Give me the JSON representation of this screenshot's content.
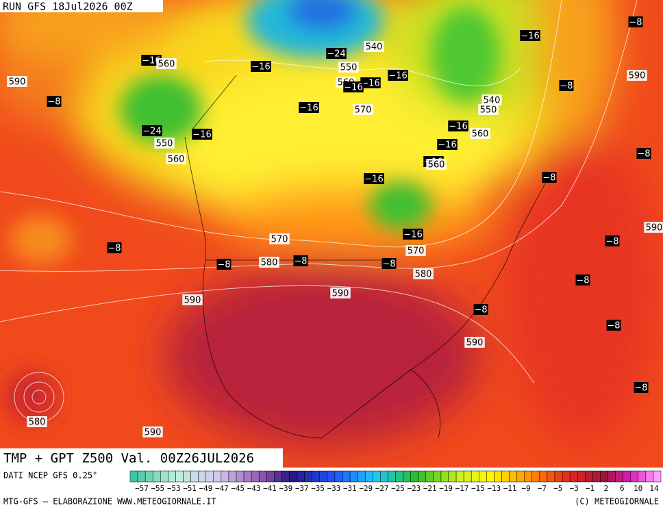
{
  "header": {
    "run": "RUN GFS 18Jul2026 00Z"
  },
  "map": {
    "contour_labels": [
      "540",
      "550",
      "560",
      "−24",
      "−16",
      "−16",
      "570",
      "−16",
      "−16",
      "−16",
      "−16",
      "−8",
      "590",
      "−8",
      "540",
      "550",
      "−16",
      "560",
      "−16",
      "−16",
      "560",
      "−8",
      "−16",
      "−8",
      "590",
      "−16",
      "570",
      "−8",
      "580",
      "−8",
      "−8",
      "−8",
      "590",
      "−8",
      "−8",
      "590",
      "580",
      "−8",
      "−8",
      "570",
      "590",
      "−8",
      "560",
      "550",
      "−24",
      "−16",
      "−16",
      "560",
      "590",
      "−8",
      "580",
      "590"
    ]
  },
  "footer": {
    "title": "TMP + GPT Z500 Val. 00Z26JUL2026",
    "source": "DATI NCEP GFS 0.25°",
    "scale_labels": [
      "−57",
      "−55",
      "−53",
      "−51",
      "−49",
      "−47",
      "−45",
      "−43",
      "−41",
      "−39",
      "−37",
      "−35",
      "−33",
      "−31",
      "−29",
      "−27",
      "−25",
      "−23",
      "−21",
      "−19",
      "−17",
      "−15",
      "−13",
      "−11",
      "−9",
      "−7",
      "−5",
      "−3",
      "−1",
      "2",
      "6",
      "10",
      "14"
    ],
    "credit": "MTG-GFS – ELABORAZIONE WWW.METEOGIORNALE.IT",
    "copyright": "(C) METEOGIORNALE"
  }
}
